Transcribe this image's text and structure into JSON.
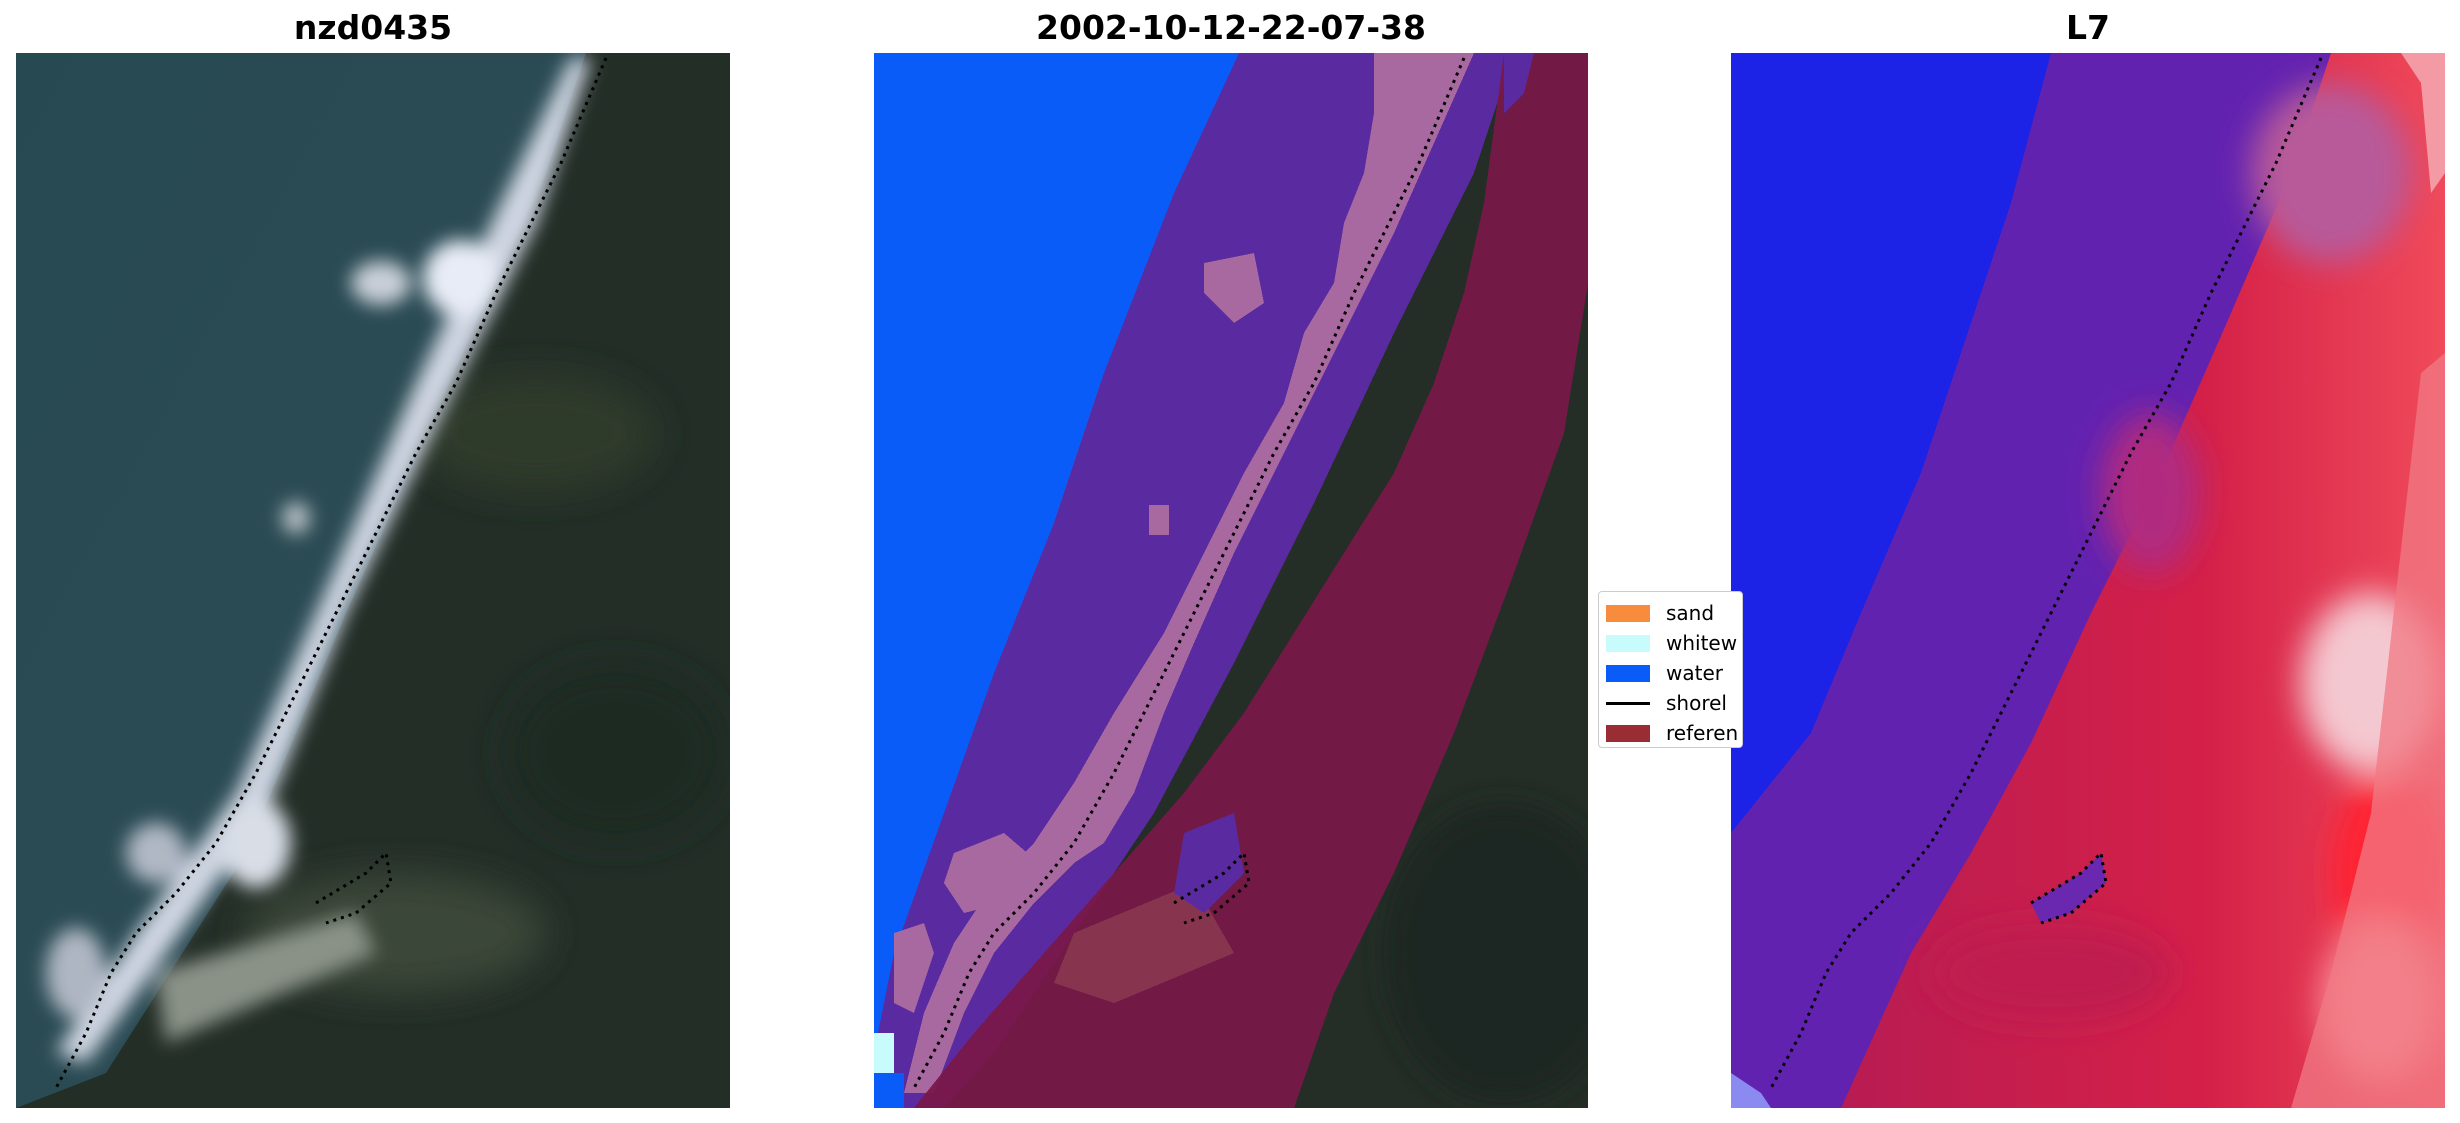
{
  "panels": [
    {
      "title": "nzd0435",
      "kind": "rgb"
    },
    {
      "title": "2002-10-12-22-07-38",
      "kind": "classification"
    },
    {
      "title": "L7",
      "kind": "index"
    }
  ],
  "legend": {
    "items": [
      {
        "label": "sand",
        "color": "#f68c3c",
        "type": "patch"
      },
      {
        "label": "whitew",
        "color": "#c8fcfc",
        "type": "patch"
      },
      {
        "label": "water",
        "color": "#0a5cf8",
        "type": "patch"
      },
      {
        "label": "shorel",
        "color": "#000000",
        "type": "line"
      },
      {
        "label": "referen",
        "color": "#9a2c34",
        "type": "patch"
      }
    ]
  },
  "colors": {
    "sea_rgb": "#2c4a50",
    "land_rgb": "#243026",
    "beach_rgb": "#d8dde6",
    "water_class": "#0a5cf8",
    "purple_overlay": "#5a2aa0",
    "pink_overlay": "#a868a0",
    "reference_overlay": "#7a1848",
    "index_blue": "#1a1ee8",
    "index_purple": "#6a20a8",
    "index_red": "#d0204a"
  }
}
